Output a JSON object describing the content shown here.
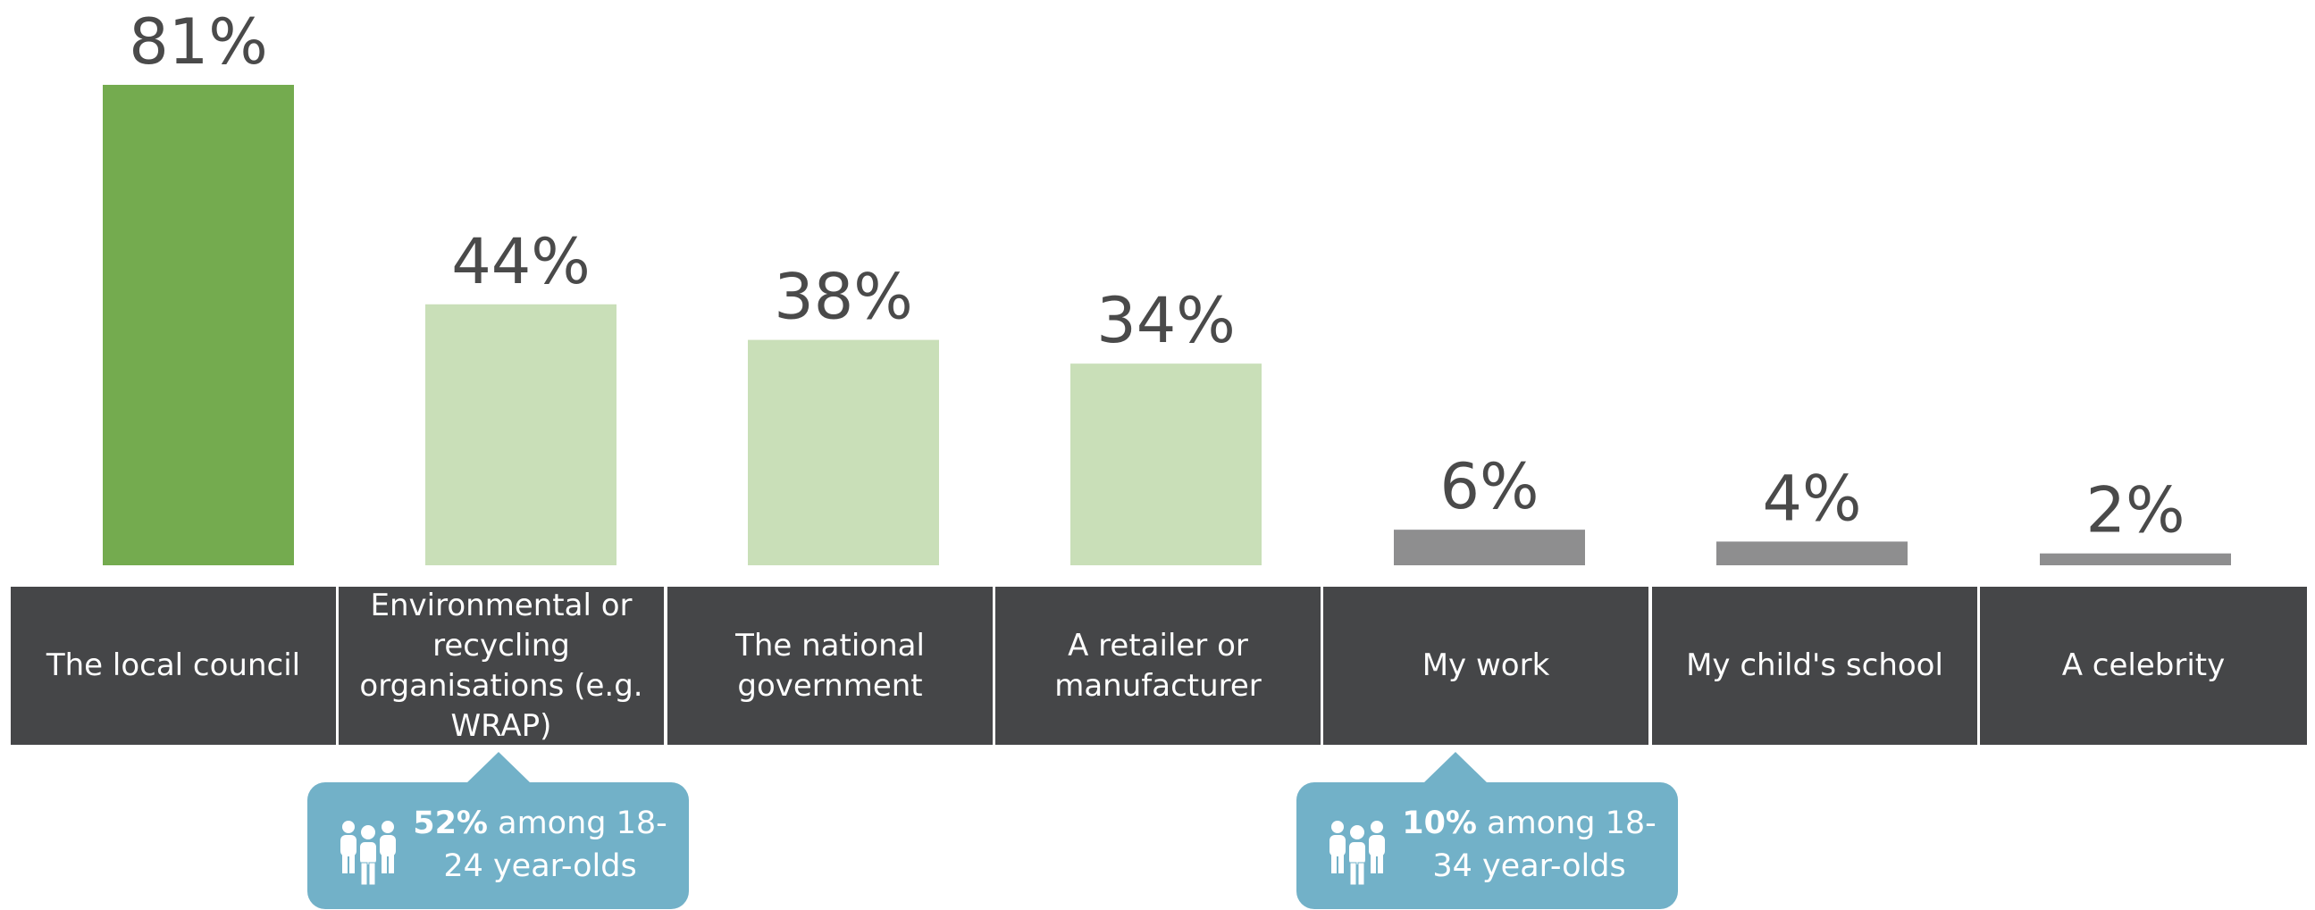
{
  "chart_data": {
    "type": "bar",
    "categories": [
      "The local council",
      "Environmental or recycling organisations (e.g. WRAP)",
      "The national government",
      "A retailer or manufacturer",
      "My work",
      "My child's school",
      "A celebrity"
    ],
    "values": [
      81,
      44,
      38,
      34,
      6,
      4,
      2
    ],
    "value_labels": [
      "81%",
      "44%",
      "38%",
      "34%",
      "6%",
      "4%",
      "2%"
    ],
    "bar_colors": [
      "#74ab4f",
      "#c9dfb8",
      "#c9dfb8",
      "#c9dfb8",
      "#8e8e8f",
      "#8e8e8f",
      "#8e8e8f"
    ],
    "ylim": [
      0,
      81
    ]
  },
  "colors": {
    "category_band": "#454648",
    "callout": "#72b1c8",
    "value_text": "#4a4a4a"
  },
  "callouts": [
    {
      "category_index": 1,
      "value": "52%",
      "text_line1": " among 18-",
      "text_line2": "24 year-olds",
      "icon": "people-icon"
    },
    {
      "category_index": 4,
      "value": "10%",
      "text_line1": " among 18-",
      "text_line2": "34 year-olds",
      "icon": "people-icon"
    }
  ]
}
